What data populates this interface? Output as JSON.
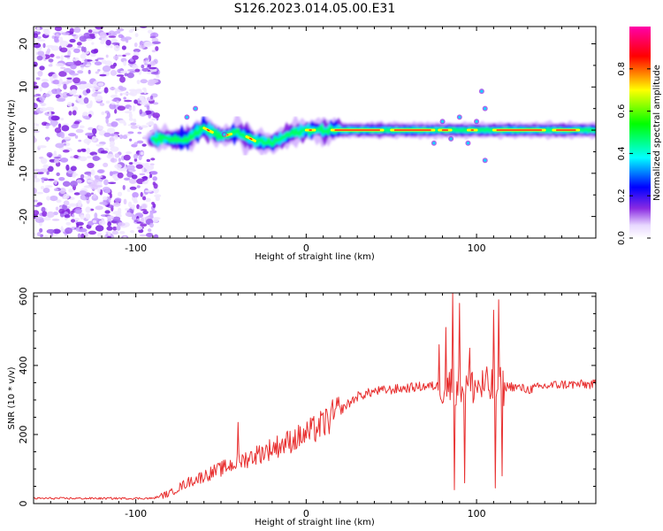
{
  "figure": {
    "title": "S126.2023.014.05.00.E31"
  },
  "chart_data": [
    {
      "type": "heatmap",
      "xlabel": "Height of straight line (km)",
      "ylabel": "Frequency (Hz)",
      "xlim": [
        -160,
        170
      ],
      "ylim": [
        -25,
        24
      ],
      "x_ticks": [
        -100,
        0,
        100
      ],
      "y_ticks": [
        -20,
        -10,
        0,
        10,
        20
      ],
      "grid": false,
      "colormap": "rainbow (white → violet → blue → cyan → green → yellow → red → magenta)",
      "colorbar": {
        "label": "Normalized spectral amplitude",
        "range": [
          0,
          1
        ],
        "ticks": [
          0.0,
          0.2,
          0.4,
          0.6,
          0.8
        ]
      },
      "description_values": {
        "noise_region_x": [
          -160,
          -87
        ],
        "line_center_hz_by_height": [
          [
            -90,
            -2
          ],
          [
            -70,
            -2
          ],
          [
            -60,
            0.5
          ],
          [
            -50,
            -1.5
          ],
          [
            -40,
            -0.5
          ],
          [
            -30,
            -2.5
          ],
          [
            -20,
            -3
          ],
          [
            -10,
            -1
          ],
          [
            0,
            0
          ],
          [
            20,
            0
          ],
          [
            60,
            0
          ],
          [
            100,
            0
          ],
          [
            140,
            0
          ],
          [
            170,
            0
          ]
        ]
      }
    },
    {
      "type": "line",
      "xlabel": "Height of straight line (km)",
      "ylabel": "SNR (10 * v/v)",
      "xlim": [
        -160,
        170
      ],
      "ylim": [
        0,
        610
      ],
      "x_ticks": [
        -100,
        0,
        100
      ],
      "y_ticks": [
        0,
        200,
        400,
        600
      ],
      "grid": false,
      "series": [
        {
          "color": "#e83030",
          "envelope": {
            "x": [
              -160,
              -120,
              -90,
              -80,
              -70,
              -60,
              -50,
              -40,
              -30,
              -20,
              -10,
              0,
              10,
              20,
              30,
              40,
              50,
              60,
              70,
              80,
              90,
              100,
              110,
              120,
              130,
              140,
              150,
              160,
              170
            ],
            "y": [
              15,
              15,
              15,
              30,
              60,
              80,
              100,
              120,
              140,
              160,
              180,
              200,
              230,
              270,
              310,
              325,
              330,
              335,
              340,
              340,
              345,
              340,
              335,
              340,
              330,
              340,
              345,
              345,
              345
            ]
          },
          "spikes": [
            {
              "x": -40,
              "y": 235
            },
            {
              "x": 78,
              "y": 460
            },
            {
              "x": 82,
              "y": 510
            },
            {
              "x": 86,
              "y": 610
            },
            {
              "x": 87,
              "y": 40
            },
            {
              "x": 90,
              "y": 580
            },
            {
              "x": 93,
              "y": 60
            },
            {
              "x": 96,
              "y": 450
            },
            {
              "x": 110,
              "y": 560
            },
            {
              "x": 111,
              "y": 45
            },
            {
              "x": 113,
              "y": 590
            },
            {
              "x": 115,
              "y": 80
            }
          ]
        }
      ]
    }
  ]
}
